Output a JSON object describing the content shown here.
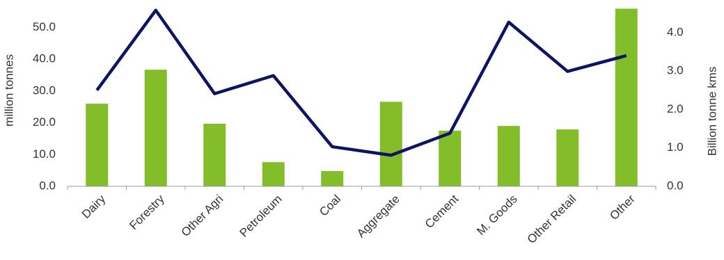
{
  "chart_data": {
    "type": "bar-line",
    "y_label": "million tonnes",
    "y2_label": "Billion tonne kms",
    "categories": [
      "Dairy",
      "Forestry",
      "Other Agri",
      "Petroleum",
      "Coal",
      "Aggregate",
      "Cement",
      "M. Goods",
      "Other Retail",
      "Other"
    ],
    "series": [
      {
        "type": "bar",
        "color": "#84bd2a",
        "values": [
          26.0,
          36.7,
          19.7,
          7.6,
          4.8,
          26.6,
          17.5,
          19.0,
          17.9,
          55.9
        ]
      },
      {
        "type": "line",
        "axis": "y2",
        "color": "#0d1463",
        "values": [
          2.5,
          4.58,
          2.41,
          2.88,
          1.03,
          0.81,
          1.38,
          4.27,
          2.99,
          3.4
        ]
      }
    ],
    "ylim": [
      0,
      56
    ],
    "yticks": [
      {
        "value": 0,
        "label": "0.0"
      },
      {
        "value": 10,
        "label": "10.0"
      },
      {
        "value": 20,
        "label": "20.0"
      },
      {
        "value": 30,
        "label": "30.0"
      },
      {
        "value": 40,
        "label": "40.0"
      },
      {
        "value": 50,
        "label": "50.0"
      }
    ],
    "y2lim": [
      0,
      4.63
    ],
    "y2ticks": [
      {
        "value": 0,
        "label": "0.0"
      },
      {
        "value": 1,
        "label": "1.0"
      },
      {
        "value": 2,
        "label": "2.0"
      },
      {
        "value": 3,
        "label": "3.0"
      },
      {
        "value": 4,
        "label": "4.0"
      }
    ]
  }
}
